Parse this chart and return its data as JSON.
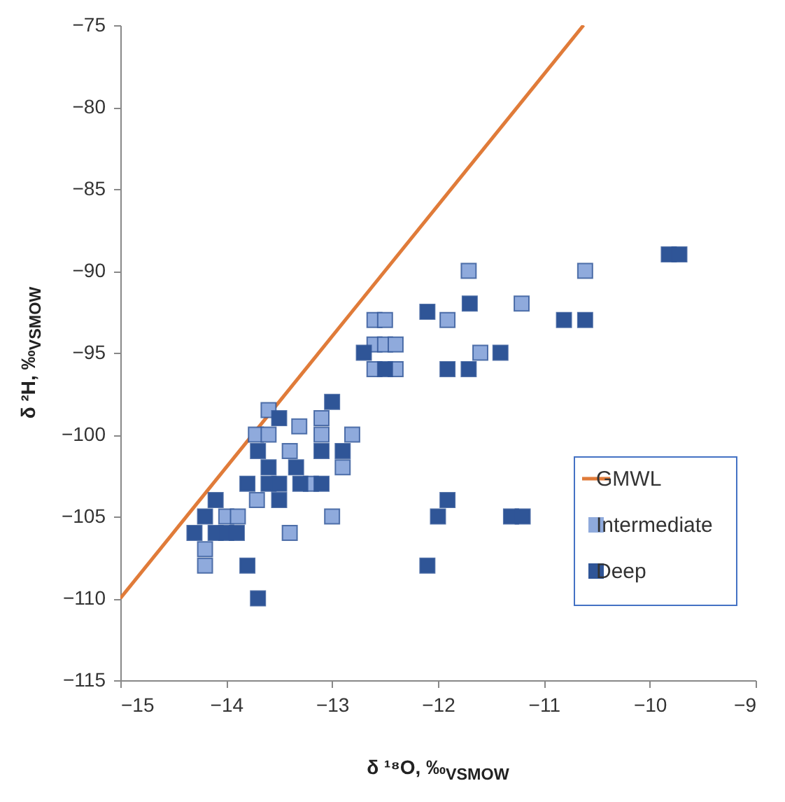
{
  "chart_data": {
    "type": "scatter",
    "xlabel": "δ ¹⁸O, ‰$_{VSMOW}$",
    "ylabel": "δ ²H, ‰$_{VSMOW}$",
    "xlim": [
      -15,
      -9
    ],
    "xticks": [
      -15,
      -14,
      -13,
      -12,
      -11,
      -10,
      -9
    ],
    "ylim": [
      -115,
      -75
    ],
    "yticks": [
      -115,
      -110,
      -105,
      -100,
      -95,
      -90,
      -85,
      -80,
      -75
    ],
    "grid": false,
    "legend": "right",
    "series": [
      {
        "name": "GMWL",
        "type": "line",
        "line_style": "solid",
        "color": "#e07b39",
        "x": [
          -15,
          -10.625
        ],
        "values": [
          -110,
          -75
        ]
      },
      {
        "name": "Intermediate",
        "marker": "square",
        "color": "#8faadc",
        "x": [
          -13.6,
          -13.72,
          -13.6,
          -13.31,
          -13.1,
          -13.1,
          -12.81,
          -13.4,
          -12.9,
          -13.2,
          -13.71,
          -14.0,
          -13.89,
          -13.0,
          -13.4,
          -14.2,
          -14.2,
          -11.71,
          -10.61,
          -11.21,
          -11.91,
          -11.6,
          -12.6,
          -12.5,
          -12.6,
          -12.5,
          -12.4,
          -12.6,
          -12.4
        ],
        "values": [
          -98.5,
          -100,
          -100,
          -99.5,
          -99,
          -100,
          -100,
          -101,
          -102,
          -103,
          -104,
          -105,
          -105,
          -105,
          -106,
          -107,
          -108,
          -90,
          -90,
          -92,
          -93,
          -95,
          -93,
          -93,
          -94.5,
          -94.5,
          -94.5,
          -96,
          -96
        ]
      },
      {
        "name": "Deep",
        "marker": "square",
        "color": "#2f5597",
        "x": [
          -13.0,
          -13.5,
          -13.7,
          -13.1,
          -12.9,
          -13.6,
          -13.34,
          -13.8,
          -13.6,
          -13.5,
          -13.3,
          -13.1,
          -14.1,
          -13.5,
          -14.2,
          -14.3,
          -14.1,
          -14.0,
          -13.9,
          -13.8,
          -13.7,
          -12.1,
          -11.7,
          -10.81,
          -10.61,
          -11.41,
          -11.91,
          -11.71,
          -12.7,
          -12.5,
          -11.91,
          -12.0,
          -11.31,
          -11.2,
          -12.1,
          -9.82,
          -9.72
        ],
        "values": [
          -98,
          -99,
          -101,
          -101,
          -101,
          -102,
          -102,
          -103,
          -103,
          -103,
          -103,
          -103,
          -104,
          -104,
          -105,
          -106,
          -106,
          -106,
          -106,
          -108,
          -110,
          -92.5,
          -92,
          -93,
          -93,
          -95,
          -96,
          -96,
          -95,
          -96,
          -104,
          -105,
          -105,
          -105,
          -108,
          -89,
          -89
        ]
      }
    ]
  }
}
